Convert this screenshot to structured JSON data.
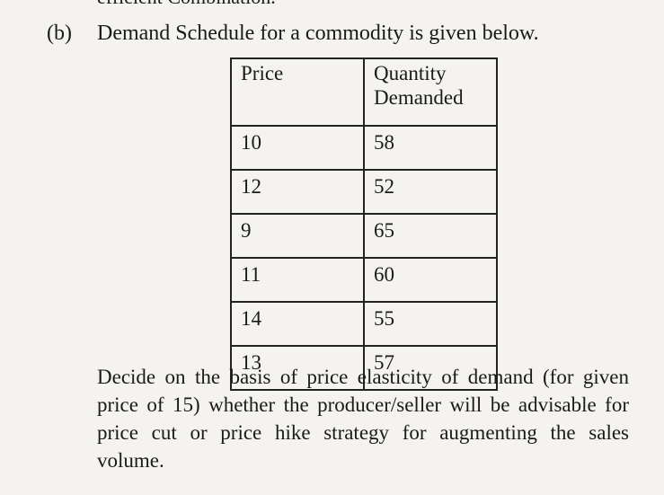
{
  "top_fragment": "efficient Combination.",
  "question": {
    "label": "(b)",
    "text": "Demand Schedule for a commodity is given below."
  },
  "table": {
    "headers": [
      "Price",
      "Quantity Demanded"
    ],
    "rows": [
      [
        "10",
        "58"
      ],
      [
        "12",
        "52"
      ],
      [
        "9",
        "65"
      ],
      [
        "11",
        "60"
      ],
      [
        "14",
        "55"
      ],
      [
        "13",
        "57"
      ]
    ]
  },
  "paragraph": "Decide on the basis of price elasticity of demand (for given price of 15) whether the producer/seller will be advisable for price cut or price hike strategy for augmenting the sales volume."
}
